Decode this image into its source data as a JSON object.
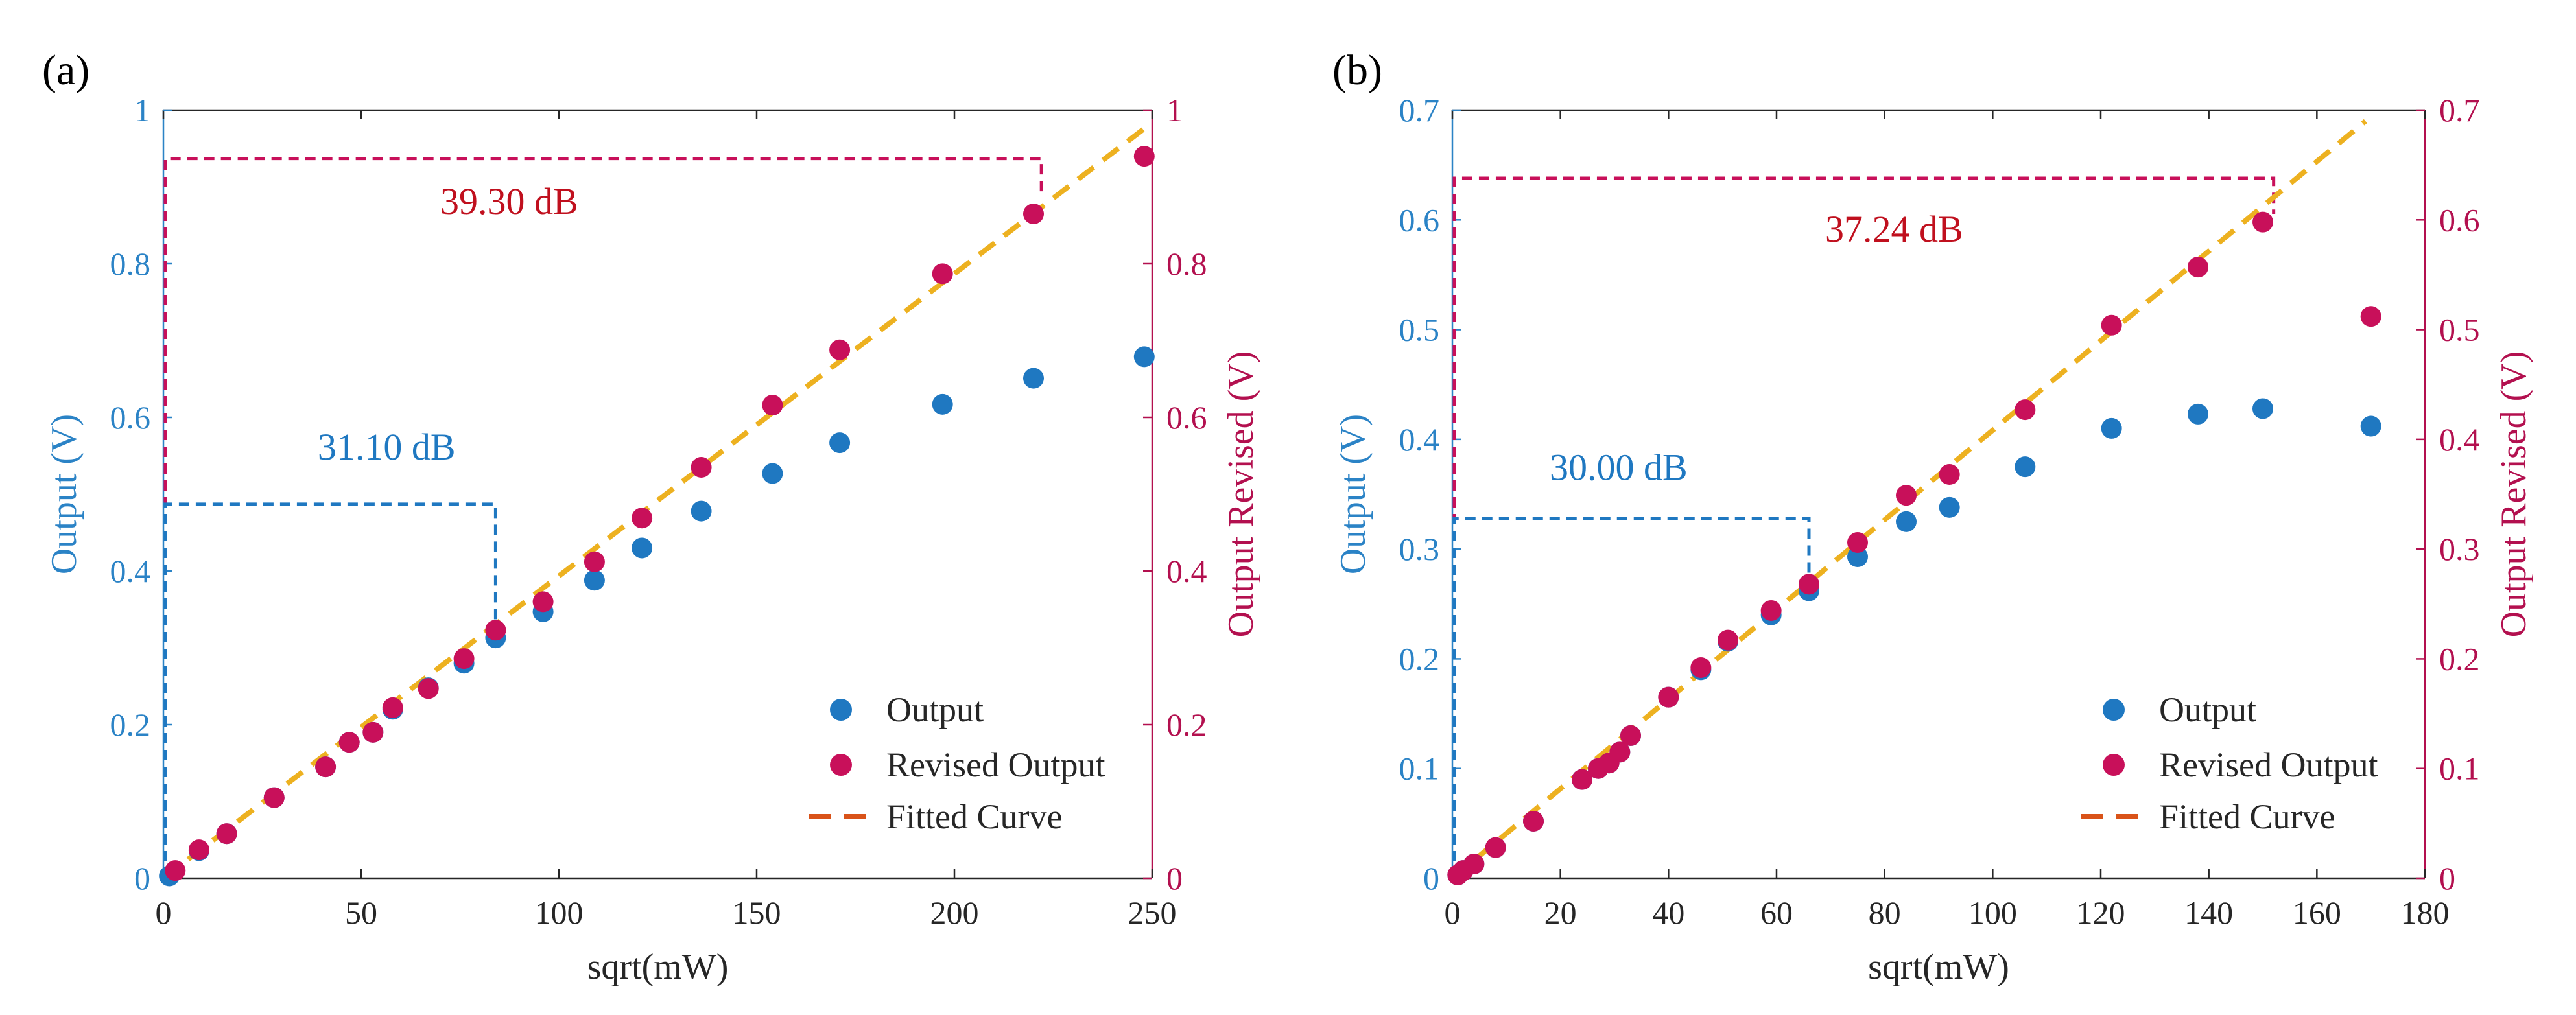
{
  "colors": {
    "output": "#1f78c1",
    "revised": "#c8105a",
    "fit": "#edb120",
    "fit_legend": "#d95319",
    "left_axis": "#2b83c6",
    "right_axis": "#b3104f",
    "annotation_red": "#c0101e",
    "annotation_blue": "#1f78c1",
    "black": "#262626"
  },
  "chart_data": [
    {
      "panel_label": "(a)",
      "type": "scatter",
      "xlabel": "sqrt(mW)",
      "ylabel_left": "Output (V)",
      "ylabel_right": "Output Revised (V)",
      "xlim": [
        0,
        250
      ],
      "ylim": [
        0,
        1
      ],
      "x_ticks": [
        "0",
        "50",
        "100",
        "150",
        "200",
        "250"
      ],
      "y_ticks_left": [
        "0",
        "0.2",
        "0.4",
        "0.6",
        "0.8",
        "1"
      ],
      "y_ticks_right": [
        "0",
        "0.2",
        "0.4",
        "0.6",
        "0.8",
        "1"
      ],
      "legend": [
        "Output",
        "Revised Output",
        "Fitted Curve"
      ],
      "legend_position": "bottom-right",
      "fit_line": {
        "x": [
          0,
          248
        ],
        "y": [
          0,
          0.976
        ]
      },
      "series": [
        {
          "name": "Output",
          "x": [
            1.5,
            9,
            16,
            28,
            41,
            47,
            53,
            58,
            67,
            76,
            84,
            96,
            109,
            121,
            136,
            154,
            171,
            197,
            220,
            248
          ],
          "y": [
            0.003,
            0.036,
            0.058,
            0.105,
            0.145,
            0.177,
            0.19,
            0.22,
            0.248,
            0.28,
            0.313,
            0.347,
            0.388,
            0.43,
            0.478,
            0.527,
            0.567,
            0.617,
            0.651,
            0.679
          ]
        },
        {
          "name": "Revised Output",
          "x": [
            3,
            9,
            16,
            28,
            41,
            47,
            53,
            58,
            67,
            76,
            84,
            96,
            109,
            121,
            136,
            154,
            171,
            197,
            220,
            248
          ],
          "y": [
            0.01,
            0.037,
            0.058,
            0.105,
            0.145,
            0.177,
            0.19,
            0.222,
            0.247,
            0.286,
            0.323,
            0.36,
            0.412,
            0.469,
            0.535,
            0.616,
            0.688,
            0.787,
            0.865,
            0.94
          ]
        }
      ],
      "annotations": [
        {
          "text": "39.30 dB",
          "color": "red",
          "bracket_x": [
            0,
            222
          ],
          "bracket_y": [
            0,
            0.937
          ],
          "text_x": 70,
          "text_y": 0.865
        },
        {
          "text": "31.10 dB",
          "color": "blue",
          "bracket_x": [
            0,
            84
          ],
          "bracket_y": [
            0,
            0.487
          ],
          "text_x": 39,
          "text_y": 0.545
        }
      ]
    },
    {
      "panel_label": "(b)",
      "type": "scatter",
      "xlabel": "sqrt(mW)",
      "ylabel_left": "Output (V)",
      "ylabel_right": "Output Revised (V)",
      "xlim": [
        0,
        180
      ],
      "ylim": [
        0,
        0.7
      ],
      "x_ticks": [
        "0",
        "20",
        "40",
        "60",
        "80",
        "100",
        "120",
        "140",
        "160",
        "180"
      ],
      "y_ticks_left": [
        "0",
        "0.1",
        "0.2",
        "0.3",
        "0.4",
        "0.5",
        "0.6",
        "0.7"
      ],
      "y_ticks_right": [
        "0",
        "0.1",
        "0.2",
        "0.3",
        "0.4",
        "0.5",
        "0.6",
        "0.7"
      ],
      "legend": [
        "Output",
        "Revised Output",
        "Fitted Curve"
      ],
      "legend_position": "bottom-right",
      "fit_line": {
        "x": [
          0,
          169
        ],
        "y": [
          0,
          0.69
        ]
      },
      "series": [
        {
          "name": "Output",
          "x": [
            1,
            2,
            4,
            8,
            15,
            24,
            27,
            29,
            31,
            33,
            40,
            46,
            51,
            59,
            66,
            75,
            84,
            92,
            106,
            122,
            138,
            150,
            170
          ],
          "y": [
            0.003,
            0.007,
            0.013,
            0.028,
            0.052,
            0.09,
            0.1,
            0.105,
            0.115,
            0.13,
            0.165,
            0.19,
            0.216,
            0.24,
            0.262,
            0.293,
            0.325,
            0.338,
            0.375,
            0.41,
            0.423,
            0.428,
            0.412
          ]
        },
        {
          "name": "Revised Output",
          "x": [
            1,
            2,
            4,
            8,
            15,
            24,
            27,
            29,
            31,
            33,
            40,
            46,
            51,
            59,
            66,
            75,
            84,
            92,
            106,
            122,
            138,
            150,
            170
          ],
          "y": [
            0.003,
            0.007,
            0.013,
            0.028,
            0.052,
            0.09,
            0.1,
            0.105,
            0.115,
            0.13,
            0.165,
            0.192,
            0.217,
            0.244,
            0.268,
            0.306,
            0.349,
            0.368,
            0.427,
            0.504,
            0.557,
            0.598,
            0.512
          ]
        }
      ],
      "annotations": [
        {
          "text": "37.24 dB",
          "color": "red",
          "bracket_x": [
            0,
            152
          ],
          "bracket_y": [
            0,
            0.638
          ],
          "text_x": 69,
          "text_y": 0.58
        },
        {
          "text": "30.00 dB",
          "color": "blue",
          "bracket_x": [
            0,
            66
          ],
          "bracket_y": [
            0,
            0.328
          ],
          "text_x": 18,
          "text_y": 0.363
        }
      ]
    }
  ]
}
